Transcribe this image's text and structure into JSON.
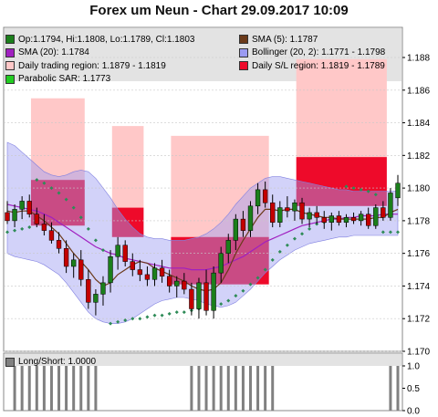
{
  "title": "Forex um Neun - Chart 29.09.2017 10:09",
  "colors": {
    "bollinger": "#9b9bf2",
    "region_light": "#ffc8c8",
    "region_dark": "#ee0a2a",
    "candle_up": "#1b7f1b",
    "candle_down": "#c40000",
    "sma5": "#6b3a1a",
    "sma20": "#a020c0",
    "sar": "#2e8b57",
    "bars": "#808080"
  },
  "legend": {
    "rows": [
      [
        {
          "label": "Op:1.1794, Hi:1.1808, Lo:1.1789, Cl:1.1803",
          "color": "#1b7f1b",
          "icon": "candle-icon"
        },
        {
          "label": "SMA (5): 1.1787",
          "color": "#6b3a1a",
          "icon": "sma5-swatch-icon"
        }
      ],
      [
        {
          "label": "SMA (20): 1.1784",
          "color": "#a020c0",
          "icon": "sma20-swatch-icon"
        },
        {
          "label": "Bollinger (20, 2): 1.1771 - 1.1798",
          "color": "#9b9bf2",
          "icon": "bollinger-swatch-icon"
        }
      ],
      [
        {
          "label": "Daily trading region: 1.1879 - 1.1819",
          "color": "#ffc8c8",
          "icon": "trading-region-swatch-icon"
        },
        {
          "label": "Daily S/L region: 1.1819 - 1.1789",
          "color": "#ee0a2a",
          "icon": "sl-region-swatch-icon"
        }
      ],
      [
        {
          "label": "Parabolic SAR: 1.1773",
          "color": "#22cc22",
          "icon": "sar-swatch-icon"
        }
      ]
    ]
  },
  "sub_legend": "Long/Short: 1.0000",
  "chart_data": [
    {
      "type": "candlestick",
      "title": "Forex um Neun - Chart 29.09.2017 10:09",
      "ylim": [
        1.17,
        1.1895
      ],
      "y_ticks": [
        1.17,
        1.172,
        1.174,
        1.176,
        1.178,
        1.18,
        1.182,
        1.184,
        1.186,
        1.188
      ],
      "grid": true,
      "series": [
        {
          "name": "Op:1.1794, Hi:1.1808, Lo:1.1789, Cl:1.1803",
          "ohlc": [
            [
              1.1785,
              1.1792,
              1.1778,
              1.178
            ],
            [
              1.178,
              1.179,
              1.1776,
              1.1787
            ],
            [
              1.1787,
              1.1795,
              1.1781,
              1.1792
            ],
            [
              1.1792,
              1.1796,
              1.1782,
              1.1784
            ],
            [
              1.1784,
              1.1788,
              1.1776,
              1.1778
            ],
            [
              1.1778,
              1.1784,
              1.1771,
              1.1774
            ],
            [
              1.1774,
              1.1779,
              1.1766,
              1.1768
            ],
            [
              1.1768,
              1.1773,
              1.176,
              1.1763
            ],
            [
              1.1763,
              1.1768,
              1.1748,
              1.1752
            ],
            [
              1.1752,
              1.176,
              1.1745,
              1.1756
            ],
            [
              1.1756,
              1.1762,
              1.174,
              1.1744
            ],
            [
              1.1744,
              1.175,
              1.1726,
              1.173
            ],
            [
              1.173,
              1.1738,
              1.1722,
              1.1735
            ],
            [
              1.1735,
              1.1746,
              1.1728,
              1.1742
            ],
            [
              1.1742,
              1.1762,
              1.1736,
              1.1758
            ],
            [
              1.1758,
              1.177,
              1.175,
              1.1765
            ],
            [
              1.1765,
              1.1768,
              1.1752,
              1.1755
            ],
            [
              1.1755,
              1.176,
              1.1746,
              1.175
            ],
            [
              1.175,
              1.1756,
              1.1743,
              1.1747
            ],
            [
              1.1747,
              1.1752,
              1.174,
              1.1744
            ],
            [
              1.1744,
              1.1754,
              1.174,
              1.1751
            ],
            [
              1.1751,
              1.1756,
              1.1742,
              1.1746
            ],
            [
              1.1746,
              1.175,
              1.1736,
              1.174
            ],
            [
              1.174,
              1.1746,
              1.1733,
              1.1743
            ],
            [
              1.1743,
              1.1748,
              1.1735,
              1.1738
            ],
            [
              1.1738,
              1.1742,
              1.1722,
              1.1726
            ],
            [
              1.1726,
              1.1745,
              1.172,
              1.1742
            ],
            [
              1.1742,
              1.175,
              1.1722,
              1.1725
            ],
            [
              1.1725,
              1.1752,
              1.172,
              1.1748
            ],
            [
              1.1748,
              1.1764,
              1.1742,
              1.176
            ],
            [
              1.176,
              1.1772,
              1.1754,
              1.1768
            ],
            [
              1.1768,
              1.1784,
              1.1762,
              1.1781
            ],
            [
              1.1781,
              1.1786,
              1.177,
              1.1774
            ],
            [
              1.1774,
              1.1792,
              1.177,
              1.1789
            ],
            [
              1.1789,
              1.1803,
              1.1784,
              1.1799
            ],
            [
              1.1799,
              1.1804,
              1.1788,
              1.1791
            ],
            [
              1.1791,
              1.1796,
              1.1776,
              1.1779
            ],
            [
              1.1779,
              1.1792,
              1.1776,
              1.1788
            ],
            [
              1.1788,
              1.1795,
              1.1782,
              1.1786
            ],
            [
              1.1786,
              1.1793,
              1.178,
              1.1791
            ],
            [
              1.1791,
              1.1794,
              1.1778,
              1.1781
            ],
            [
              1.1781,
              1.1788,
              1.1776,
              1.1785
            ],
            [
              1.1785,
              1.1789,
              1.1778,
              1.1782
            ],
            [
              1.1782,
              1.1786,
              1.1775,
              1.1779
            ],
            [
              1.1779,
              1.1785,
              1.1774,
              1.1783
            ],
            [
              1.1783,
              1.1786,
              1.1777,
              1.1779
            ],
            [
              1.1779,
              1.1784,
              1.1776,
              1.1782
            ],
            [
              1.1782,
              1.1785,
              1.1778,
              1.178
            ],
            [
              1.178,
              1.1786,
              1.1777,
              1.1784
            ],
            [
              1.1784,
              1.1788,
              1.1775,
              1.1777
            ],
            [
              1.1777,
              1.179,
              1.1775,
              1.1788
            ],
            [
              1.1788,
              1.1792,
              1.178,
              1.1782
            ],
            [
              1.1782,
              1.18,
              1.178,
              1.1797
            ],
            [
              1.1794,
              1.1808,
              1.1789,
              1.1803
            ]
          ]
        },
        {
          "name": "SMA (5): 1.1787",
          "values": [
            1.1786,
            1.1785,
            1.1786,
            1.1786,
            1.1783,
            1.178,
            1.1776,
            1.1772,
            1.1766,
            1.176,
            1.1755,
            1.175,
            1.1744,
            1.174,
            1.1742,
            1.1747,
            1.175,
            1.1753,
            1.1755,
            1.1754,
            1.1751,
            1.1749,
            1.1747,
            1.1745,
            1.1743,
            1.174,
            1.1738,
            1.1737,
            1.1738,
            1.1742,
            1.175,
            1.176,
            1.1768,
            1.1775,
            1.1782,
            1.1787,
            1.1787,
            1.1786,
            1.1787,
            1.1787,
            1.1785,
            1.1784,
            1.1783,
            1.1782,
            1.1782,
            1.1781,
            1.1781,
            1.1781,
            1.1781,
            1.1781,
            1.1782,
            1.1782,
            1.1785,
            1.1787
          ]
        },
        {
          "name": "SMA (20): 1.1784",
          "values": [
            1.179,
            1.1789,
            1.1788,
            1.1787,
            1.1786,
            1.1784,
            1.1782,
            1.1779,
            1.1776,
            1.1773,
            1.177,
            1.1767,
            1.1764,
            1.1762,
            1.176,
            1.1759,
            1.1757,
            1.1756,
            1.1755,
            1.1754,
            1.1753,
            1.1752,
            1.1751,
            1.1751,
            1.1751,
            1.175,
            1.175,
            1.175,
            1.1751,
            1.1752,
            1.1754,
            1.1756,
            1.1758,
            1.1761,
            1.1764,
            1.1767,
            1.1769,
            1.1771,
            1.1773,
            1.1775,
            1.1777,
            1.1778,
            1.1779,
            1.178,
            1.1781,
            1.1781,
            1.1782,
            1.1782,
            1.1783,
            1.1783,
            1.1783,
            1.1784,
            1.1784,
            1.1784
          ]
        },
        {
          "name": "Bollinger (20, 2): 1.1771 - 1.1798",
          "upper": [
            1.1828,
            1.1826,
            1.1822,
            1.1818,
            1.1814,
            1.181,
            1.1808,
            1.1807,
            1.1808,
            1.181,
            1.1811,
            1.181,
            1.1806,
            1.18,
            1.1794,
            1.1787,
            1.1781,
            1.1776,
            1.1772,
            1.177,
            1.1769,
            1.1769,
            1.1768,
            1.1768,
            1.1768,
            1.1769,
            1.177,
            1.1772,
            1.1775,
            1.1779,
            1.1784,
            1.179,
            1.1795,
            1.18,
            1.1803,
            1.1806,
            1.1807,
            1.1807,
            1.1806,
            1.1805,
            1.1804,
            1.1803,
            1.1802,
            1.1801,
            1.18,
            1.1799,
            1.1799,
            1.1798,
            1.1798,
            1.1798,
            1.1798,
            1.1798,
            1.1798,
            1.1798
          ],
          "lower": [
            1.176,
            1.1758,
            1.1757,
            1.1756,
            1.1755,
            1.1753,
            1.175,
            1.1747,
            1.1742,
            1.1736,
            1.173,
            1.1724,
            1.172,
            1.1718,
            1.1717,
            1.1717,
            1.1718,
            1.172,
            1.1723,
            1.1726,
            1.1729,
            1.1731,
            1.1732,
            1.1733,
            1.1733,
            1.1732,
            1.1731,
            1.1729,
            1.1728,
            1.1727,
            1.1728,
            1.173,
            1.1734,
            1.1738,
            1.1743,
            1.1748,
            1.1752,
            1.1756,
            1.1759,
            1.1762,
            1.1764,
            1.1766,
            1.1767,
            1.1768,
            1.1769,
            1.177,
            1.177,
            1.1771,
            1.1771,
            1.1771,
            1.1771,
            1.1771,
            1.1771,
            1.1771
          ]
        },
        {
          "name": "Parabolic SAR: 1.1773",
          "values": [
            1.1773,
            1.1774,
            1.1775,
            1.1776,
            1.1805,
            1.1803,
            1.18,
            1.1797,
            1.1793,
            1.1788,
            1.1782,
            1.1775,
            1.1768,
            1.1762,
            1.1717,
            1.1718,
            1.1719,
            1.172,
            1.172,
            1.1721,
            1.1722,
            1.1722,
            1.1723,
            1.1724,
            1.1724,
            1.1725,
            1.1726,
            1.1726,
            1.1727,
            1.1729,
            1.1731,
            1.1734,
            1.1737,
            1.1741,
            1.1745,
            1.175,
            1.1756,
            1.1761,
            1.1765,
            1.1769,
            1.1772,
            1.1775,
            1.1778,
            1.1779,
            1.178,
            1.1781,
            1.1801,
            1.18,
            1.1799,
            1.1798,
            1.1796,
            1.1773,
            1.1773,
            1.1773
          ]
        },
        {
          "name": "Daily trading region: 1.1879 - 1.1819",
          "type": "region",
          "days": [
            [
              0,
              11,
              1.1805,
              1.1855
            ],
            [
              11,
              19,
              1.1788,
              1.1838
            ],
            [
              19,
              36,
              1.1769,
              1.1832
            ],
            [
              36,
              52,
              1.1819,
              1.1879
            ]
          ]
        },
        {
          "name": "Daily S/L region: 1.1819 - 1.1789",
          "type": "region",
          "days": [
            [
              0,
              11,
              1.1777,
              1.1805
            ],
            [
              11,
              19,
              1.177,
              1.1788
            ],
            [
              19,
              36,
              1.1741,
              1.177
            ],
            [
              36,
              52,
              1.1789,
              1.1819
            ]
          ]
        }
      ]
    },
    {
      "type": "bar",
      "title": "Long/Short: 1.0000",
      "ylim": [
        0,
        1
      ],
      "y_ticks": [
        0.0,
        0.5,
        1.0
      ],
      "values": [
        0,
        1,
        1,
        1,
        1,
        1,
        1,
        1,
        1,
        1,
        1,
        1,
        1,
        0,
        0,
        0,
        0,
        0,
        0,
        0,
        0,
        0,
        0,
        0,
        0,
        1,
        1,
        1,
        1,
        1,
        1,
        1,
        1,
        1,
        1,
        1,
        1,
        0,
        0,
        0,
        0,
        0,
        0,
        0,
        0,
        0,
        0,
        0,
        0,
        0,
        0,
        0,
        1,
        1
      ]
    }
  ]
}
